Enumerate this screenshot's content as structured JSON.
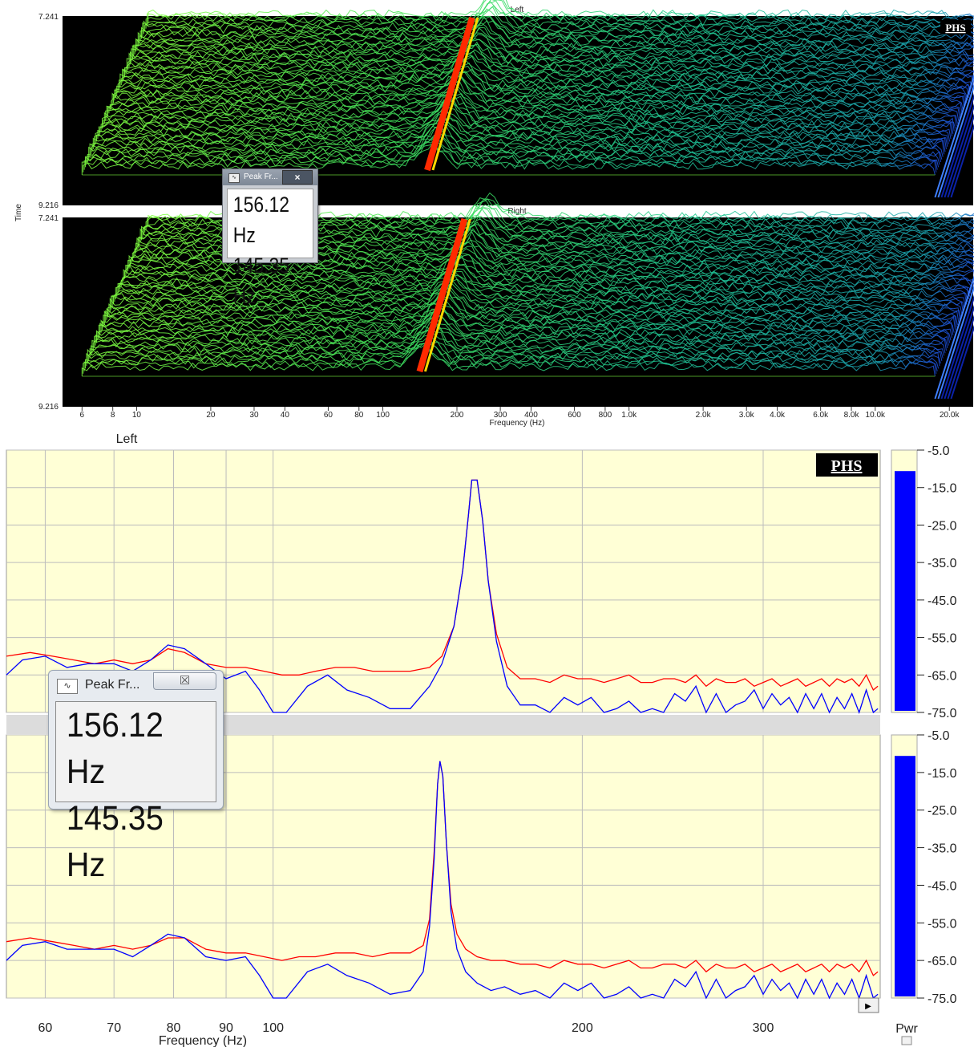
{
  "waterfall": {
    "panels": [
      {
        "title": "Left",
        "peak_frequency": 156.12
      },
      {
        "title": "Right",
        "peak_frequency": 145.35
      }
    ],
    "time_ticks": [
      "7.241",
      "9.216"
    ],
    "time_label": "Time",
    "freq_ticks": [
      6,
      8,
      10,
      20,
      30,
      40,
      60,
      80,
      100,
      200,
      300,
      400,
      600,
      800,
      1000,
      2000,
      3000,
      4000,
      6000,
      8000,
      10000,
      20000
    ],
    "freq_tick_labels": [
      "6",
      "8",
      "10",
      "20",
      "30",
      "40",
      "60",
      "80",
      "100",
      "200",
      "300",
      "400",
      "600",
      "800",
      "1.0k",
      "2.0k",
      "3.0k",
      "4.0k",
      "6.0k",
      "8.0k",
      "10.0k",
      "20.0k"
    ],
    "xlabel": "Frequency (Hz)",
    "xlim": [
      5,
      25000
    ],
    "logo": "PHS"
  },
  "popup_small": {
    "title": "Peak Fr...",
    "close": "×",
    "values": [
      "156.12 Hz",
      "145.35 Hz"
    ]
  },
  "spectrum": {
    "title": "Left",
    "logo": "PHS",
    "xlabel": "Frequency (Hz)",
    "xlim": [
      55,
      390
    ],
    "x_ticks": [
      60,
      70,
      80,
      90,
      100,
      200,
      300
    ],
    "ylim": [
      -75,
      -5
    ],
    "y_ticks": [
      "-5.0",
      "-15.0",
      "-25.0",
      "-35.0",
      "-45.0",
      "-55.0",
      "-65.0",
      "-75.0"
    ],
    "meter_label": "Pwr",
    "meter_level_db": [
      -10.6,
      -10.6
    ],
    "colors": {
      "red": "#ff0000",
      "blue": "#0000ff",
      "plot_bg": "#ffffd6",
      "grid": "#bcbcbc"
    },
    "panels": [
      {
        "peak_frequency": 156.12,
        "blue": [
          [
            55,
            -65
          ],
          [
            57,
            -61
          ],
          [
            60,
            -60
          ],
          [
            63,
            -63
          ],
          [
            66,
            -62
          ],
          [
            70,
            -62
          ],
          [
            73,
            -64
          ],
          [
            76,
            -61
          ],
          [
            79,
            -57
          ],
          [
            82,
            -58
          ],
          [
            86,
            -62
          ],
          [
            90,
            -66
          ],
          [
            94,
            -64
          ],
          [
            97,
            -69
          ],
          [
            100,
            -75
          ],
          [
            103,
            -75
          ],
          [
            108,
            -68
          ],
          [
            113,
            -65
          ],
          [
            118,
            -69
          ],
          [
            124,
            -71
          ],
          [
            130,
            -74
          ],
          [
            136,
            -74
          ],
          [
            142,
            -68
          ],
          [
            146,
            -62
          ],
          [
            150,
            -52
          ],
          [
            153,
            -37
          ],
          [
            155,
            -22
          ],
          [
            156.12,
            -13
          ],
          [
            158,
            -13
          ],
          [
            160,
            -24
          ],
          [
            162,
            -40
          ],
          [
            165,
            -56
          ],
          [
            169,
            -68
          ],
          [
            174,
            -73
          ],
          [
            180,
            -73
          ],
          [
            186,
            -75
          ],
          [
            192,
            -71
          ],
          [
            198,
            -73
          ],
          [
            204,
            -71
          ],
          [
            210,
            -75
          ],
          [
            216,
            -74
          ],
          [
            222,
            -72
          ],
          [
            228,
            -75
          ],
          [
            234,
            -74
          ],
          [
            240,
            -75
          ],
          [
            246,
            -70
          ],
          [
            252,
            -72
          ],
          [
            258,
            -68
          ],
          [
            264,
            -75
          ],
          [
            270,
            -70
          ],
          [
            276,
            -75
          ],
          [
            282,
            -73
          ],
          [
            288,
            -72
          ],
          [
            294,
            -69
          ],
          [
            300,
            -74
          ],
          [
            306,
            -70
          ],
          [
            312,
            -73
          ],
          [
            318,
            -71
          ],
          [
            324,
            -75
          ],
          [
            330,
            -70
          ],
          [
            336,
            -74
          ],
          [
            342,
            -70
          ],
          [
            348,
            -75
          ],
          [
            354,
            -71
          ],
          [
            360,
            -74
          ],
          [
            366,
            -70
          ],
          [
            372,
            -75
          ],
          [
            378,
            -69
          ],
          [
            384,
            -75
          ],
          [
            388,
            -74
          ]
        ],
        "red": [
          [
            55,
            -60
          ],
          [
            58,
            -59
          ],
          [
            61,
            -60
          ],
          [
            64,
            -61
          ],
          [
            67,
            -62
          ],
          [
            70,
            -61
          ],
          [
            73,
            -62
          ],
          [
            76,
            -61
          ],
          [
            79,
            -58
          ],
          [
            82,
            -59
          ],
          [
            86,
            -62
          ],
          [
            90,
            -63
          ],
          [
            94,
            -63
          ],
          [
            98,
            -64
          ],
          [
            102,
            -65
          ],
          [
            106,
            -65
          ],
          [
            110,
            -64
          ],
          [
            115,
            -63
          ],
          [
            120,
            -63
          ],
          [
            125,
            -64
          ],
          [
            130,
            -64
          ],
          [
            136,
            -64
          ],
          [
            142,
            -63
          ],
          [
            146,
            -60
          ],
          [
            150,
            -52
          ],
          [
            153,
            -37
          ],
          [
            155,
            -22
          ],
          [
            156.12,
            -13
          ],
          [
            158,
            -13
          ],
          [
            160,
            -24
          ],
          [
            162,
            -40
          ],
          [
            165,
            -54
          ],
          [
            169,
            -63
          ],
          [
            174,
            -66
          ],
          [
            180,
            -66
          ],
          [
            186,
            -67
          ],
          [
            192,
            -65
          ],
          [
            198,
            -66
          ],
          [
            204,
            -66
          ],
          [
            210,
            -67
          ],
          [
            216,
            -66
          ],
          [
            222,
            -65
          ],
          [
            228,
            -67
          ],
          [
            234,
            -67
          ],
          [
            240,
            -66
          ],
          [
            246,
            -66
          ],
          [
            252,
            -67
          ],
          [
            258,
            -65
          ],
          [
            264,
            -68
          ],
          [
            270,
            -66
          ],
          [
            276,
            -67
          ],
          [
            282,
            -67
          ],
          [
            288,
            -66
          ],
          [
            294,
            -68
          ],
          [
            300,
            -67
          ],
          [
            306,
            -66
          ],
          [
            312,
            -68
          ],
          [
            318,
            -67
          ],
          [
            324,
            -66
          ],
          [
            330,
            -68
          ],
          [
            336,
            -67
          ],
          [
            342,
            -66
          ],
          [
            348,
            -68
          ],
          [
            354,
            -66
          ],
          [
            360,
            -67
          ],
          [
            366,
            -66
          ],
          [
            372,
            -68
          ],
          [
            378,
            -65
          ],
          [
            384,
            -69
          ],
          [
            388,
            -68
          ]
        ]
      },
      {
        "peak_frequency": 145.35,
        "blue": [
          [
            55,
            -65
          ],
          [
            57,
            -61
          ],
          [
            60,
            -60
          ],
          [
            63,
            -62
          ],
          [
            66,
            -62
          ],
          [
            70,
            -62
          ],
          [
            73,
            -64
          ],
          [
            76,
            -61
          ],
          [
            79,
            -58
          ],
          [
            82,
            -59
          ],
          [
            86,
            -64
          ],
          [
            90,
            -65
          ],
          [
            94,
            -64
          ],
          [
            97,
            -69
          ],
          [
            100,
            -75
          ],
          [
            103,
            -75
          ],
          [
            108,
            -68
          ],
          [
            113,
            -66
          ],
          [
            118,
            -69
          ],
          [
            124,
            -71
          ],
          [
            130,
            -74
          ],
          [
            136,
            -73
          ],
          [
            140,
            -68
          ],
          [
            142,
            -56
          ],
          [
            143.5,
            -38
          ],
          [
            144.6,
            -18
          ],
          [
            145.35,
            -12
          ],
          [
            146.3,
            -16
          ],
          [
            147.5,
            -34
          ],
          [
            149,
            -52
          ],
          [
            151,
            -62
          ],
          [
            154,
            -68
          ],
          [
            158,
            -71
          ],
          [
            163,
            -73
          ],
          [
            168,
            -72
          ],
          [
            174,
            -74
          ],
          [
            180,
            -73
          ],
          [
            186,
            -75
          ],
          [
            192,
            -71
          ],
          [
            198,
            -73
          ],
          [
            204,
            -71
          ],
          [
            210,
            -75
          ],
          [
            216,
            -74
          ],
          [
            222,
            -72
          ],
          [
            228,
            -75
          ],
          [
            234,
            -74
          ],
          [
            240,
            -75
          ],
          [
            246,
            -70
          ],
          [
            252,
            -72
          ],
          [
            258,
            -68
          ],
          [
            264,
            -75
          ],
          [
            270,
            -70
          ],
          [
            276,
            -75
          ],
          [
            282,
            -73
          ],
          [
            288,
            -72
          ],
          [
            294,
            -69
          ],
          [
            300,
            -74
          ],
          [
            306,
            -70
          ],
          [
            312,
            -73
          ],
          [
            318,
            -71
          ],
          [
            324,
            -75
          ],
          [
            330,
            -70
          ],
          [
            336,
            -74
          ],
          [
            342,
            -70
          ],
          [
            348,
            -75
          ],
          [
            354,
            -71
          ],
          [
            360,
            -74
          ],
          [
            366,
            -70
          ],
          [
            372,
            -75
          ],
          [
            378,
            -69
          ],
          [
            384,
            -75
          ],
          [
            388,
            -74
          ]
        ],
        "red": [
          [
            55,
            -60
          ],
          [
            58,
            -59
          ],
          [
            61,
            -60
          ],
          [
            64,
            -61
          ],
          [
            67,
            -62
          ],
          [
            70,
            -61
          ],
          [
            73,
            -62
          ],
          [
            76,
            -61
          ],
          [
            79,
            -59
          ],
          [
            82,
            -59
          ],
          [
            86,
            -62
          ],
          [
            90,
            -63
          ],
          [
            94,
            -63
          ],
          [
            98,
            -64
          ],
          [
            102,
            -65
          ],
          [
            106,
            -64
          ],
          [
            110,
            -64
          ],
          [
            115,
            -63
          ],
          [
            120,
            -63
          ],
          [
            125,
            -64
          ],
          [
            130,
            -63
          ],
          [
            136,
            -63
          ],
          [
            140,
            -61
          ],
          [
            142,
            -54
          ],
          [
            143.5,
            -36
          ],
          [
            144.6,
            -18
          ],
          [
            145.35,
            -12
          ],
          [
            146.3,
            -16
          ],
          [
            147.5,
            -34
          ],
          [
            149,
            -50
          ],
          [
            151,
            -58
          ],
          [
            154,
            -62
          ],
          [
            158,
            -64
          ],
          [
            163,
            -65
          ],
          [
            168,
            -65
          ],
          [
            174,
            -66
          ],
          [
            180,
            -66
          ],
          [
            186,
            -67
          ],
          [
            192,
            -65
          ],
          [
            198,
            -66
          ],
          [
            204,
            -66
          ],
          [
            210,
            -67
          ],
          [
            216,
            -66
          ],
          [
            222,
            -65
          ],
          [
            228,
            -67
          ],
          [
            234,
            -67
          ],
          [
            240,
            -66
          ],
          [
            246,
            -66
          ],
          [
            252,
            -67
          ],
          [
            258,
            -65
          ],
          [
            264,
            -68
          ],
          [
            270,
            -66
          ],
          [
            276,
            -67
          ],
          [
            282,
            -67
          ],
          [
            288,
            -66
          ],
          [
            294,
            -68
          ],
          [
            300,
            -67
          ],
          [
            306,
            -66
          ],
          [
            312,
            -68
          ],
          [
            318,
            -67
          ],
          [
            324,
            -66
          ],
          [
            330,
            -68
          ],
          [
            336,
            -67
          ],
          [
            342,
            -66
          ],
          [
            348,
            -68
          ],
          [
            354,
            -66
          ],
          [
            360,
            -67
          ],
          [
            366,
            -66
          ],
          [
            372,
            -68
          ],
          [
            378,
            -65
          ],
          [
            384,
            -69
          ],
          [
            388,
            -68
          ]
        ]
      }
    ]
  },
  "popup_big": {
    "title": "Peak Fr...",
    "close": "☒",
    "values": [
      "156.12 Hz",
      "145.35 Hz"
    ]
  }
}
